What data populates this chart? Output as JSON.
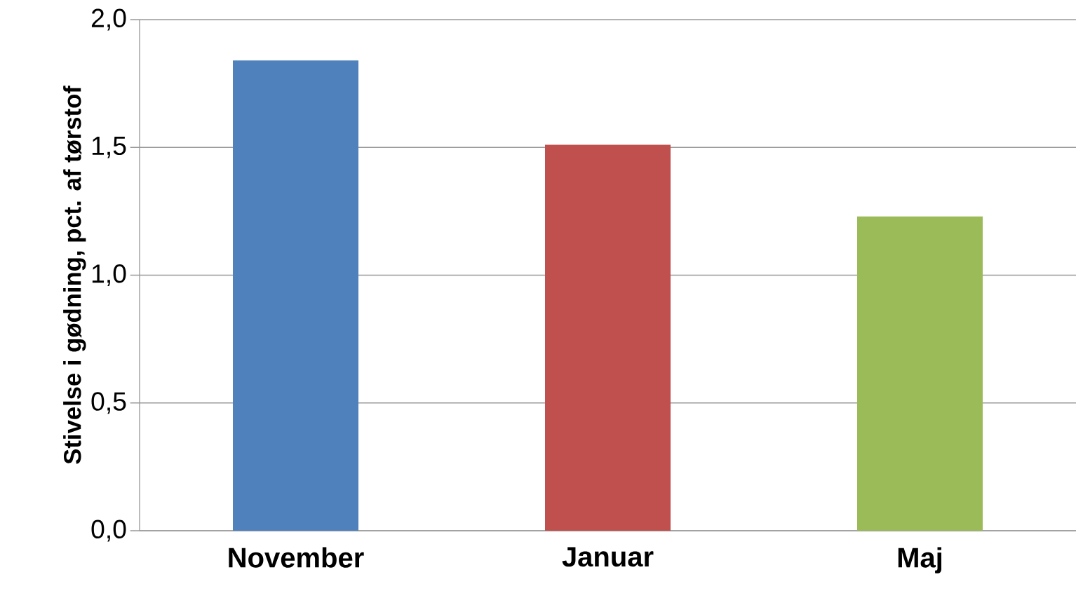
{
  "chart_data": {
    "type": "bar",
    "ylabel": "Stivelse i gødning, pct. af tørstof",
    "categories": [
      "November",
      "Januar",
      "Maj"
    ],
    "values": [
      1.84,
      1.51,
      1.23
    ],
    "colors": [
      "#4f81bd",
      "#c0504d",
      "#9bbb59"
    ],
    "ylim": [
      0,
      2.0
    ],
    "yticks": [
      {
        "value": 0,
        "label": "0,0"
      },
      {
        "value": 0.5,
        "label": "0,5"
      },
      {
        "value": 1.0,
        "label": "1,0"
      },
      {
        "value": 1.5,
        "label": "1,5"
      },
      {
        "value": 2.0,
        "label": "2,0"
      }
    ],
    "grid": "y"
  }
}
